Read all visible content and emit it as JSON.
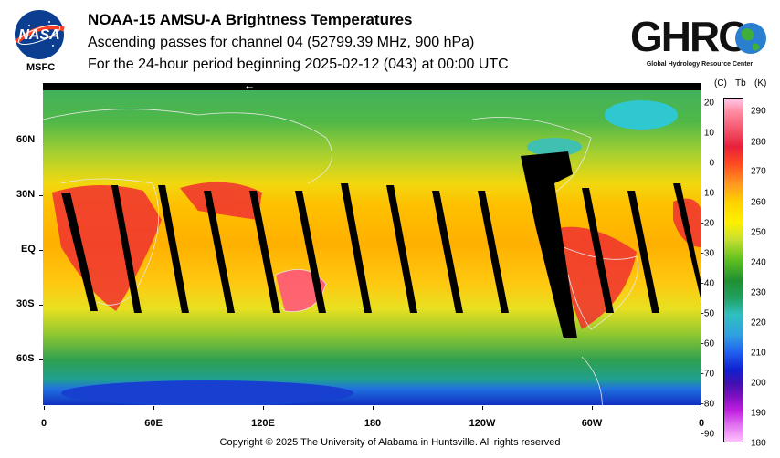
{
  "header": {
    "title": "NOAA-15 AMSU-A Brightness Temperatures",
    "line1": "Ascending passes for channel 04 (52799.39 MHz, 900 hPa)",
    "line2": "For the 24-hour period beginning 2025-02-12 (043) at 00:00 UTC"
  },
  "logos": {
    "nasa": {
      "text": "NASA",
      "caption": "MSFC"
    },
    "ghrc": {
      "text": "GHRC",
      "caption": "Global Hydrology Resource Center"
    }
  },
  "map": {
    "arrow_glyph": "←",
    "lat_labels": [
      "60N",
      "30N",
      "EQ",
      "30S",
      "60S"
    ],
    "lon_labels": [
      "0",
      "60E",
      "120E",
      "180",
      "120W",
      "60W",
      "0"
    ]
  },
  "colorbar": {
    "celsius_header": "(C)",
    "tb_header": "Tb",
    "kelvin_header": "(K)",
    "celsius_ticks": [
      "20",
      "10",
      "0",
      "-10",
      "-20",
      "-30",
      "-40",
      "-50",
      "-60",
      "-70",
      "-80",
      "-90"
    ],
    "kelvin_ticks": [
      "290",
      "280",
      "270",
      "260",
      "250",
      "240",
      "230",
      "220",
      "210",
      "200",
      "190",
      "180"
    ],
    "colors": {
      "hot": "#e8203a",
      "mid": "#ffd000",
      "cool": "#209030",
      "cold": "#1020d0"
    }
  },
  "footer": {
    "copyright": "Copyright © 2025 The University of Alabama in Huntsville.  All rights reserved"
  }
}
